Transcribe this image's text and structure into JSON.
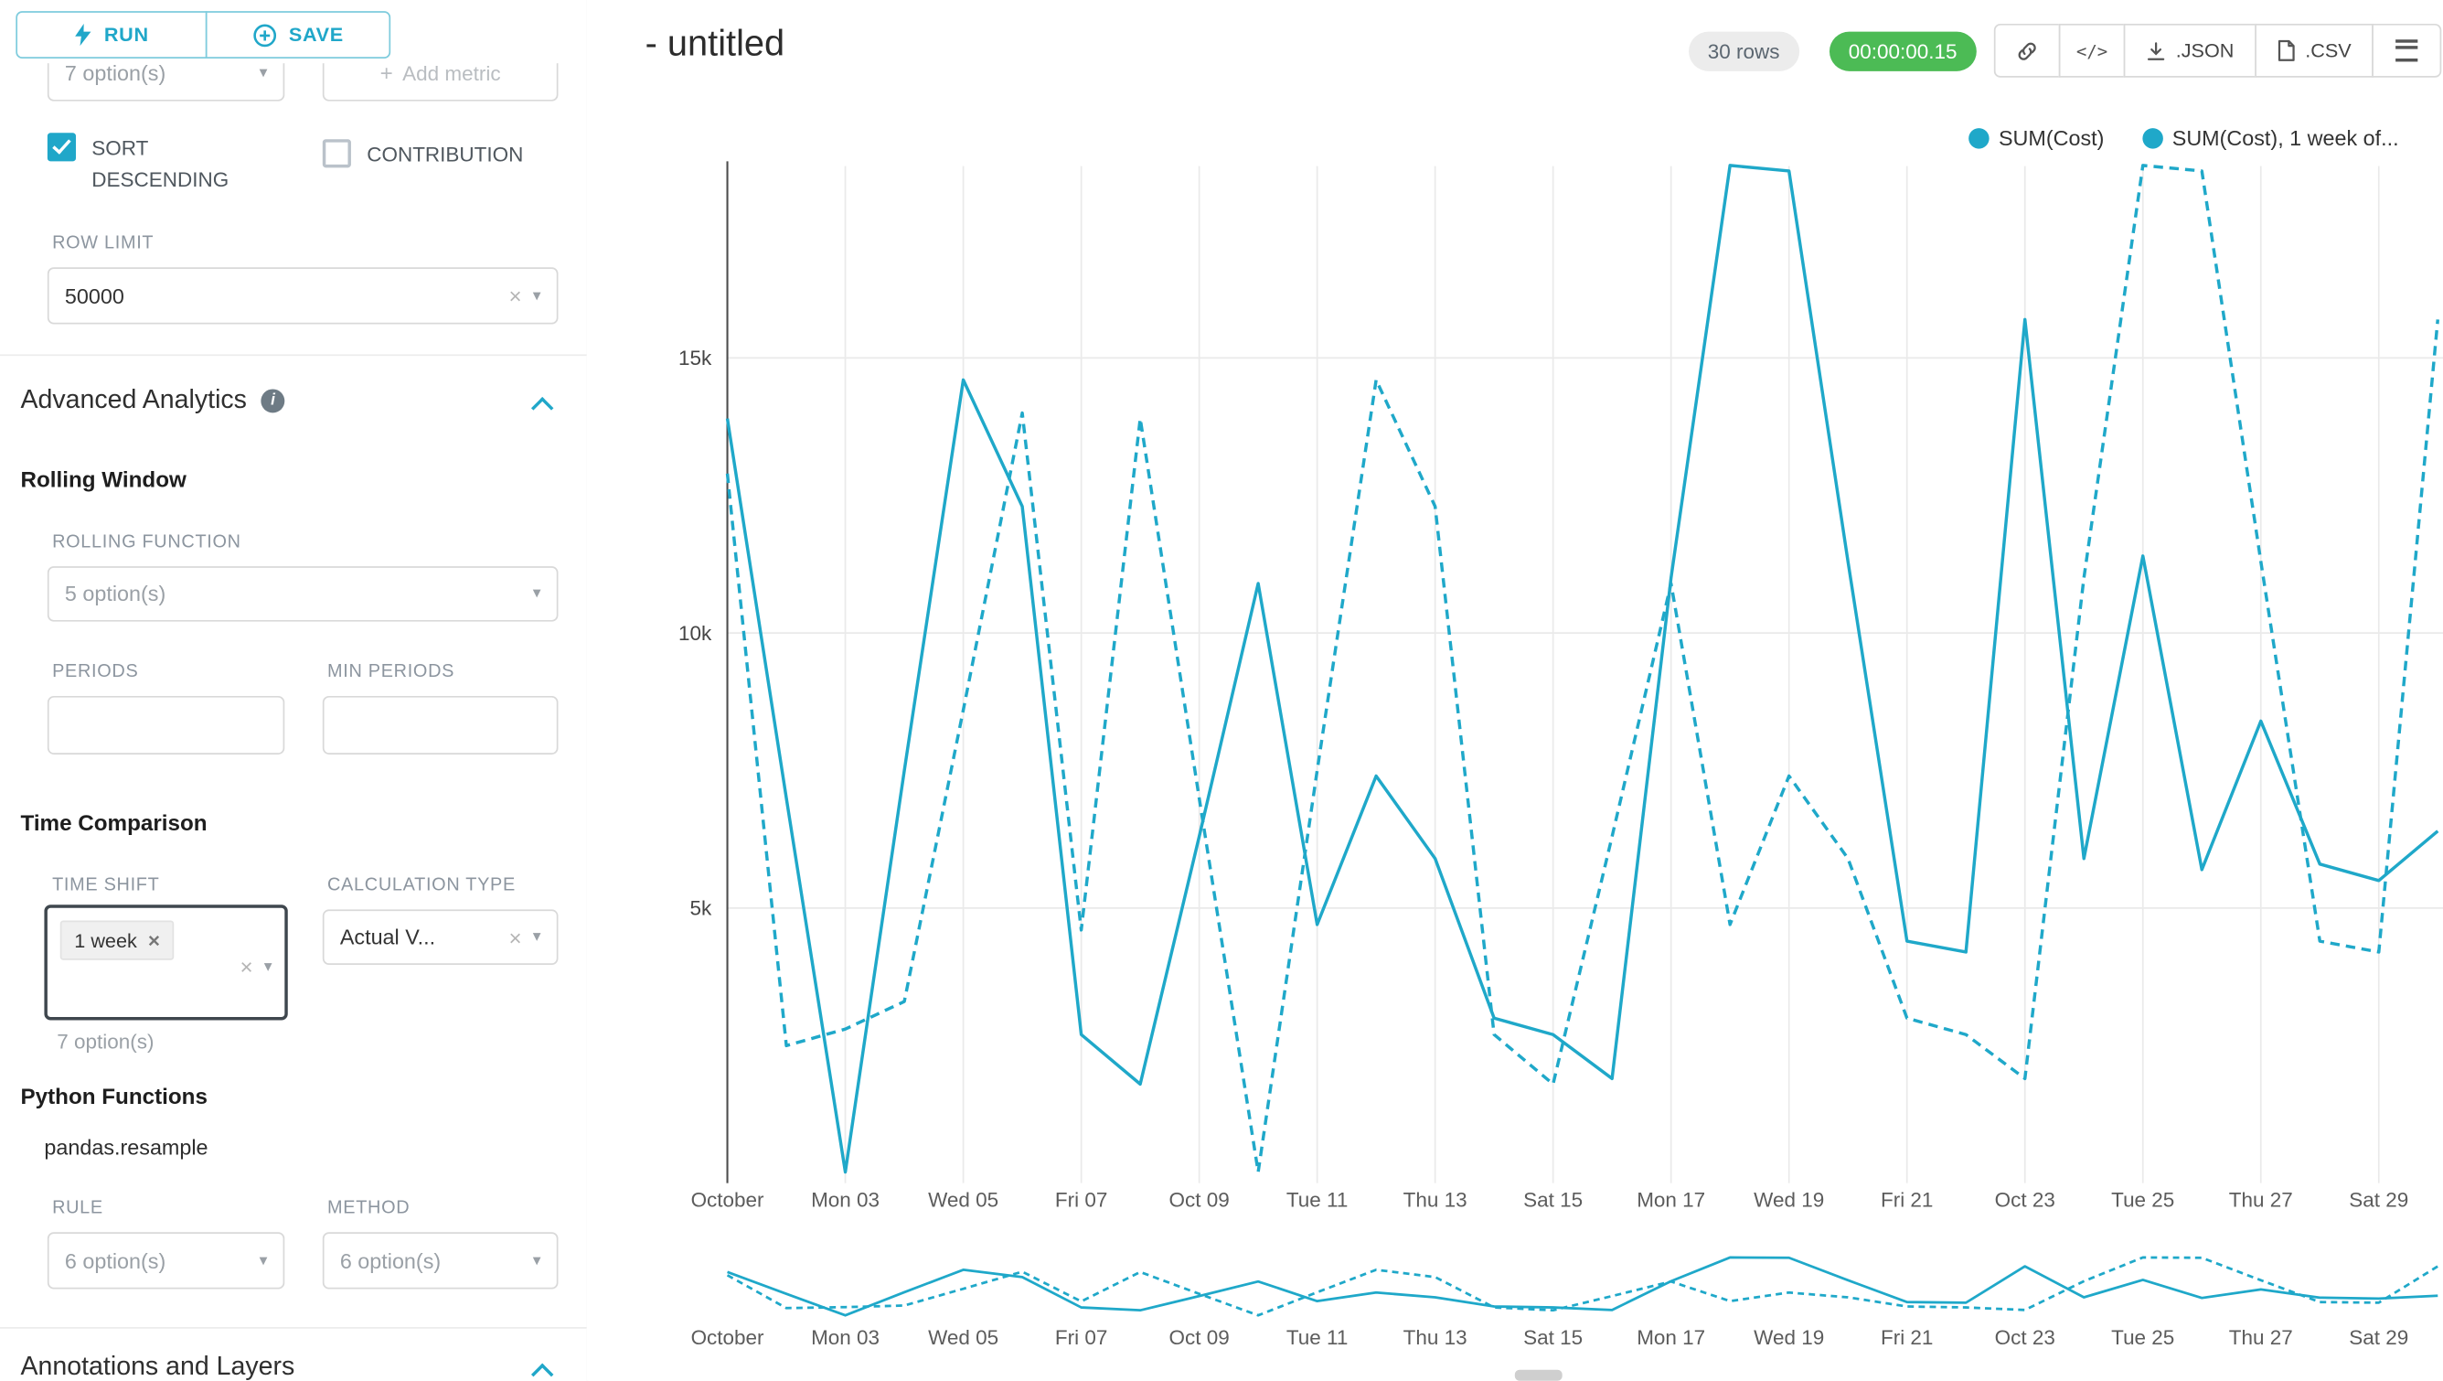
{
  "icons": {
    "caret": "▾",
    "clear": "×",
    "tag_close": "×",
    "plus": "+",
    "code": "</>"
  },
  "toolbar": {
    "run": "RUN",
    "save": "SAVE"
  },
  "controls": {
    "metrics_select_value": "7 option(s)",
    "add_metric": "Add metric",
    "sort_descending": "SORT DESCENDING",
    "contribution": "CONTRIBUTION",
    "row_limit_label": "ROW LIMIT",
    "row_limit_value": "50000",
    "advanced_analytics": "Advanced Analytics",
    "rolling_window": "Rolling Window",
    "rolling_function_label": "ROLLING FUNCTION",
    "rolling_function_value": "5 option(s)",
    "periods_label": "PERIODS",
    "min_periods_label": "MIN PERIODS",
    "time_comparison": "Time Comparison",
    "time_shift_label": "TIME SHIFT",
    "time_shift_tag": "1 week",
    "time_shift_hint": "7 option(s)",
    "calculation_type_label": "CALCULATION TYPE",
    "calculation_type_value": "Actual V...",
    "python_functions": "Python Functions",
    "pandas_resample": "pandas.resample",
    "rule_label": "RULE",
    "rule_value": "6 option(s)",
    "method_label": "METHOD",
    "method_value": "6 option(s)",
    "annotations_layers": "Annotations and Layers"
  },
  "header": {
    "title": "- untitled",
    "rows_badge": "30 rows",
    "timer": "00:00:00.15",
    "json_button": ".JSON",
    "csv_button": ".CSV"
  },
  "chart_data": {
    "type": "line",
    "title": "",
    "xlabel": "",
    "ylabel": "",
    "x_tick_labels": [
      "October",
      "Mon 03",
      "Wed 05",
      "Fri 07",
      "Oct 09",
      "Tue 11",
      "Thu 13",
      "Sat 15",
      "Mon 17",
      "Wed 19",
      "Fri 21",
      "Oct 23",
      "Tue 25",
      "Thu 27",
      "Sat 29"
    ],
    "y_ticks": [
      5000,
      10000,
      15000
    ],
    "y_tick_labels": [
      "5k",
      "10k",
      "15k"
    ],
    "ylim": [
      0,
      18500
    ],
    "grid": true,
    "legend_position": "top-right",
    "color": "#1FA8C9",
    "series": [
      {
        "name": "SUM(Cost)",
        "line_style": "solid",
        "values": [
          13900,
          7000,
          200,
          7500,
          14600,
          12300,
          2700,
          1800,
          6300,
          10900,
          4700,
          7400,
          5900,
          3000,
          2700,
          1900,
          11000,
          18500,
          18400,
          11300,
          4400,
          4200,
          15700,
          5900,
          11400,
          5700,
          8400,
          5800,
          5500,
          6400
        ]
      },
      {
        "name": "SUM(Cost), 1 week of...",
        "line_style": "dashed",
        "values": [
          12900,
          2500,
          2800,
          3300,
          8600,
          14000,
          4600,
          13900,
          7000,
          200,
          7500,
          14600,
          12300,
          2700,
          1800,
          6300,
          10900,
          4700,
          7400,
          5900,
          3000,
          2700,
          1900,
          11000,
          18500,
          18400,
          11300,
          4400,
          4200,
          15700
        ]
      }
    ]
  }
}
